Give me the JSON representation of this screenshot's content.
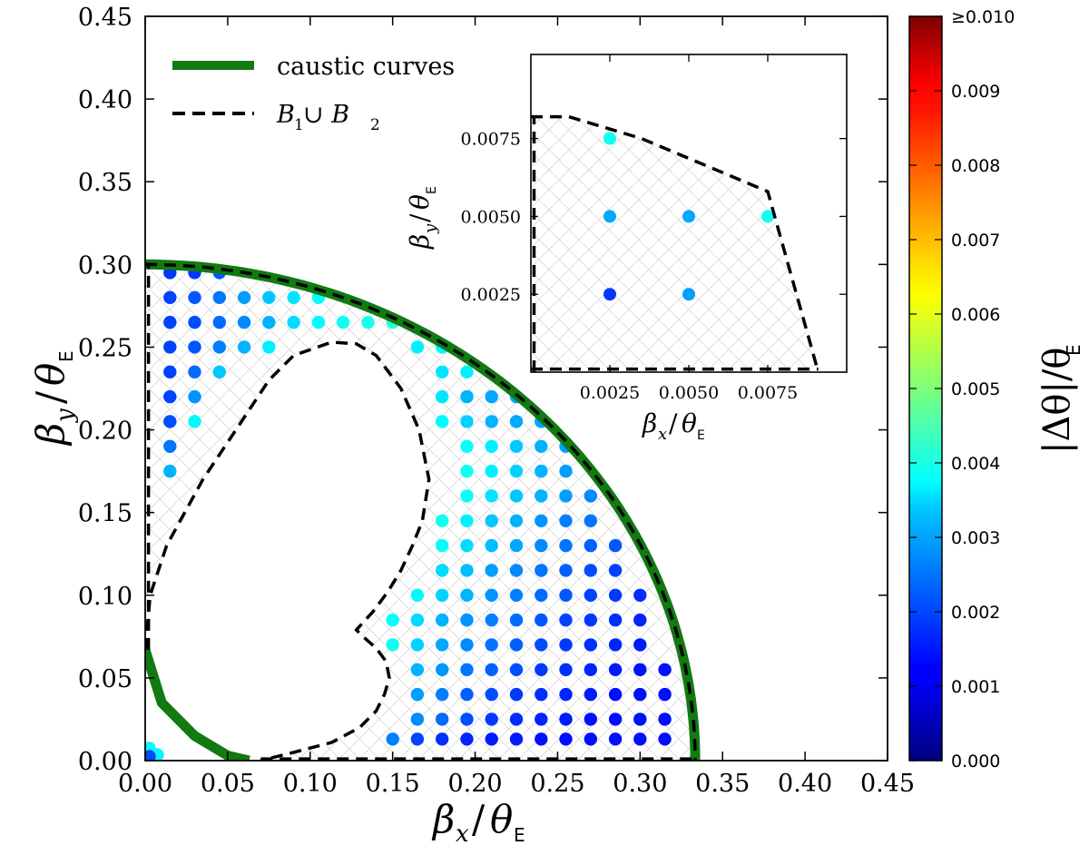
{
  "chart_data": [
    {
      "type": "scatter",
      "name": "main-plot",
      "xlabel_base": "β",
      "xlabel_sub": "x",
      "xlabel_den": "θ",
      "xlabel_den_sub": "E",
      "ylabel_base": "β",
      "ylabel_sub": "y",
      "ylabel_den": "θ",
      "ylabel_den_sub": "E",
      "xlim": [
        0,
        0.45
      ],
      "ylim": [
        0,
        0.45
      ],
      "xticks": [
        "0.00",
        "0.05",
        "0.10",
        "0.15",
        "0.20",
        "0.25",
        "0.30",
        "0.35",
        "0.40",
        "0.45"
      ],
      "yticks": [
        "0.00",
        "0.05",
        "0.10",
        "0.15",
        "0.20",
        "0.25",
        "0.30",
        "0.35",
        "0.40",
        "0.45"
      ],
      "legend": {
        "position": "top-left",
        "entries": [
          {
            "label": "caustic curves",
            "style": "solid",
            "color": "#117a11"
          },
          {
            "label": "B",
            "label_sub1": "1",
            "label_mid": " ∪ B",
            "label_sub2": "2",
            "style": "dashed",
            "color": "#000000"
          }
        ]
      },
      "caustic_outer_radius": 0.3,
      "caustic_outer_x_intercept": 0.3334,
      "caustic_inner": [
        [
          0.0,
          0.067
        ],
        [
          0.01,
          0.035
        ],
        [
          0.03,
          0.015
        ],
        [
          0.05,
          0.003
        ],
        [
          0.063,
          0.0
        ]
      ],
      "boundary_outer_radius": 0.3,
      "boundary_outer_x_intercept": 0.3334,
      "boundary_inner": [
        [
          0.0,
          0.067
        ],
        [
          0.003,
          0.1
        ],
        [
          0.013,
          0.13
        ],
        [
          0.035,
          0.17
        ],
        [
          0.055,
          0.2
        ],
        [
          0.075,
          0.23
        ],
        [
          0.09,
          0.245
        ],
        [
          0.113,
          0.253
        ],
        [
          0.128,
          0.252
        ],
        [
          0.14,
          0.245
        ],
        [
          0.155,
          0.225
        ],
        [
          0.166,
          0.2
        ],
        [
          0.172,
          0.17
        ],
        [
          0.168,
          0.145
        ],
        [
          0.162,
          0.13
        ],
        [
          0.155,
          0.115
        ],
        [
          0.147,
          0.102
        ],
        [
          0.138,
          0.09
        ],
        [
          0.128,
          0.079
        ],
        [
          0.132,
          0.075
        ],
        [
          0.14,
          0.068
        ],
        [
          0.146,
          0.06
        ],
        [
          0.148,
          0.05
        ],
        [
          0.145,
          0.04
        ],
        [
          0.14,
          0.03
        ],
        [
          0.13,
          0.02
        ],
        [
          0.113,
          0.011
        ],
        [
          0.09,
          0.005
        ],
        [
          0.07,
          0.0
        ]
      ],
      "colorbar": {
        "label": "|Δθ|/θ",
        "label_sub": "E",
        "min": 0.0,
        "max": 0.01,
        "ticks": [
          "0.000",
          "0.001",
          "0.002",
          "0.003",
          "0.004",
          "0.005",
          "0.006",
          "0.007",
          "0.008",
          "0.009",
          "≥0.010"
        ]
      },
      "points": [
        [
          0.015,
          0.295,
          0.0018
        ],
        [
          0.03,
          0.295,
          0.0018
        ],
        [
          0.045,
          0.295,
          0.0021
        ],
        [
          0.015,
          0.28,
          0.0019
        ],
        [
          0.03,
          0.28,
          0.0021
        ],
        [
          0.045,
          0.28,
          0.0024
        ],
        [
          0.06,
          0.28,
          0.0028
        ],
        [
          0.075,
          0.28,
          0.0032
        ],
        [
          0.09,
          0.28,
          0.0035
        ],
        [
          0.105,
          0.28,
          0.0038
        ],
        [
          0.015,
          0.265,
          0.0019
        ],
        [
          0.03,
          0.265,
          0.002
        ],
        [
          0.045,
          0.265,
          0.0023
        ],
        [
          0.06,
          0.265,
          0.0026
        ],
        [
          0.075,
          0.265,
          0.003
        ],
        [
          0.09,
          0.265,
          0.0034
        ],
        [
          0.105,
          0.265,
          0.0037
        ],
        [
          0.12,
          0.265,
          0.0039
        ],
        [
          0.135,
          0.265,
          0.004
        ],
        [
          0.15,
          0.265,
          0.0041
        ],
        [
          0.015,
          0.25,
          0.0019
        ],
        [
          0.03,
          0.25,
          0.0021
        ],
        [
          0.045,
          0.25,
          0.0025
        ],
        [
          0.06,
          0.25,
          0.003
        ],
        [
          0.075,
          0.25,
          0.0036
        ],
        [
          0.165,
          0.25,
          0.0036
        ],
        [
          0.18,
          0.25,
          0.0037
        ],
        [
          0.015,
          0.235,
          0.0019
        ],
        [
          0.03,
          0.235,
          0.0023
        ],
        [
          0.045,
          0.235,
          0.0032
        ],
        [
          0.18,
          0.235,
          0.0035
        ],
        [
          0.195,
          0.235,
          0.0036
        ],
        [
          0.015,
          0.22,
          0.0019
        ],
        [
          0.03,
          0.22,
          0.0027
        ],
        [
          0.18,
          0.22,
          0.0035
        ],
        [
          0.195,
          0.22,
          0.003
        ],
        [
          0.21,
          0.22,
          0.0029
        ],
        [
          0.225,
          0.22,
          0.0029
        ],
        [
          0.015,
          0.205,
          0.002
        ],
        [
          0.03,
          0.205,
          0.0037
        ],
        [
          0.18,
          0.205,
          0.0037
        ],
        [
          0.195,
          0.205,
          0.0033
        ],
        [
          0.21,
          0.205,
          0.003
        ],
        [
          0.225,
          0.205,
          0.0029
        ],
        [
          0.24,
          0.205,
          0.0029
        ],
        [
          0.015,
          0.19,
          0.0024
        ],
        [
          0.195,
          0.19,
          0.0038
        ],
        [
          0.21,
          0.19,
          0.0036
        ],
        [
          0.225,
          0.19,
          0.0032
        ],
        [
          0.24,
          0.19,
          0.003
        ],
        [
          0.255,
          0.19,
          0.0028
        ],
        [
          0.015,
          0.175,
          0.003
        ],
        [
          0.195,
          0.175,
          0.0039
        ],
        [
          0.21,
          0.175,
          0.0036
        ],
        [
          0.225,
          0.175,
          0.0033
        ],
        [
          0.24,
          0.175,
          0.003
        ],
        [
          0.255,
          0.175,
          0.0028
        ],
        [
          0.195,
          0.16,
          0.0038
        ],
        [
          0.21,
          0.16,
          0.0035
        ],
        [
          0.225,
          0.16,
          0.0032
        ],
        [
          0.24,
          0.16,
          0.003
        ],
        [
          0.255,
          0.16,
          0.0028
        ],
        [
          0.27,
          0.16,
          0.0026
        ],
        [
          0.18,
          0.145,
          0.0039
        ],
        [
          0.195,
          0.145,
          0.0036
        ],
        [
          0.21,
          0.145,
          0.0032
        ],
        [
          0.225,
          0.145,
          0.003
        ],
        [
          0.24,
          0.145,
          0.0027
        ],
        [
          0.255,
          0.145,
          0.0025
        ],
        [
          0.27,
          0.145,
          0.0024
        ],
        [
          0.18,
          0.13,
          0.0038
        ],
        [
          0.195,
          0.13,
          0.0034
        ],
        [
          0.21,
          0.13,
          0.0031
        ],
        [
          0.225,
          0.13,
          0.0029
        ],
        [
          0.24,
          0.13,
          0.0026
        ],
        [
          0.255,
          0.13,
          0.0024
        ],
        [
          0.27,
          0.13,
          0.0022
        ],
        [
          0.285,
          0.13,
          0.0021
        ],
        [
          0.18,
          0.115,
          0.0034
        ],
        [
          0.195,
          0.115,
          0.0031
        ],
        [
          0.21,
          0.115,
          0.0028
        ],
        [
          0.225,
          0.115,
          0.0026
        ],
        [
          0.24,
          0.115,
          0.0024
        ],
        [
          0.255,
          0.115,
          0.0022
        ],
        [
          0.27,
          0.115,
          0.002
        ],
        [
          0.285,
          0.115,
          0.0019
        ],
        [
          0.165,
          0.1,
          0.0037
        ],
        [
          0.18,
          0.1,
          0.0033
        ],
        [
          0.195,
          0.1,
          0.003
        ],
        [
          0.21,
          0.1,
          0.0027
        ],
        [
          0.225,
          0.1,
          0.0025
        ],
        [
          0.24,
          0.1,
          0.0023
        ],
        [
          0.255,
          0.1,
          0.0021
        ],
        [
          0.27,
          0.1,
          0.0019
        ],
        [
          0.285,
          0.1,
          0.0018
        ],
        [
          0.3,
          0.1,
          0.0017
        ],
        [
          0.15,
          0.085,
          0.0038
        ],
        [
          0.165,
          0.085,
          0.0034
        ],
        [
          0.18,
          0.085,
          0.003
        ],
        [
          0.195,
          0.085,
          0.0027
        ],
        [
          0.21,
          0.085,
          0.0025
        ],
        [
          0.225,
          0.085,
          0.0023
        ],
        [
          0.24,
          0.085,
          0.0021
        ],
        [
          0.255,
          0.085,
          0.0019
        ],
        [
          0.27,
          0.085,
          0.0018
        ],
        [
          0.285,
          0.085,
          0.0017
        ],
        [
          0.3,
          0.085,
          0.0016
        ],
        [
          0.15,
          0.07,
          0.0039
        ],
        [
          0.165,
          0.07,
          0.0033
        ],
        [
          0.18,
          0.07,
          0.0029
        ],
        [
          0.195,
          0.07,
          0.0026
        ],
        [
          0.21,
          0.07,
          0.0024
        ],
        [
          0.225,
          0.07,
          0.0022
        ],
        [
          0.24,
          0.07,
          0.002
        ],
        [
          0.255,
          0.07,
          0.0018
        ],
        [
          0.27,
          0.07,
          0.0017
        ],
        [
          0.285,
          0.07,
          0.0016
        ],
        [
          0.3,
          0.07,
          0.0015
        ],
        [
          0.165,
          0.055,
          0.003
        ],
        [
          0.18,
          0.055,
          0.0027
        ],
        [
          0.195,
          0.055,
          0.0024
        ],
        [
          0.21,
          0.055,
          0.0022
        ],
        [
          0.225,
          0.055,
          0.002
        ],
        [
          0.24,
          0.055,
          0.0018
        ],
        [
          0.255,
          0.055,
          0.0017
        ],
        [
          0.27,
          0.055,
          0.0016
        ],
        [
          0.285,
          0.055,
          0.0015
        ],
        [
          0.3,
          0.055,
          0.0014
        ],
        [
          0.315,
          0.055,
          0.0014
        ],
        [
          0.165,
          0.04,
          0.0028
        ],
        [
          0.18,
          0.04,
          0.0025
        ],
        [
          0.195,
          0.04,
          0.0022
        ],
        [
          0.21,
          0.04,
          0.002
        ],
        [
          0.225,
          0.04,
          0.0018
        ],
        [
          0.24,
          0.04,
          0.0017
        ],
        [
          0.255,
          0.04,
          0.0016
        ],
        [
          0.27,
          0.04,
          0.0015
        ],
        [
          0.285,
          0.04,
          0.0014
        ],
        [
          0.3,
          0.04,
          0.0014
        ],
        [
          0.315,
          0.04,
          0.0014
        ],
        [
          0.165,
          0.025,
          0.0026
        ],
        [
          0.18,
          0.025,
          0.0023
        ],
        [
          0.195,
          0.025,
          0.002
        ],
        [
          0.21,
          0.025,
          0.0018
        ],
        [
          0.225,
          0.025,
          0.0017
        ],
        [
          0.24,
          0.025,
          0.0016
        ],
        [
          0.255,
          0.025,
          0.0015
        ],
        [
          0.27,
          0.025,
          0.0014
        ],
        [
          0.285,
          0.025,
          0.0014
        ],
        [
          0.3,
          0.025,
          0.0014
        ],
        [
          0.315,
          0.025,
          0.0014
        ],
        [
          0.15,
          0.013,
          0.0025
        ],
        [
          0.165,
          0.013,
          0.0019
        ],
        [
          0.18,
          0.013,
          0.0017
        ],
        [
          0.195,
          0.013,
          0.0016
        ],
        [
          0.21,
          0.013,
          0.0015
        ],
        [
          0.225,
          0.013,
          0.0015
        ],
        [
          0.24,
          0.013,
          0.0014
        ],
        [
          0.255,
          0.013,
          0.0014
        ],
        [
          0.27,
          0.013,
          0.0014
        ],
        [
          0.285,
          0.013,
          0.0014
        ],
        [
          0.3,
          0.013,
          0.0014
        ],
        [
          0.315,
          0.013,
          0.0014
        ],
        [
          0.0025,
          0.0075,
          0.0038
        ],
        [
          0.0075,
          0.0035,
          0.0037
        ],
        [
          0.0025,
          0.0025,
          0.002
        ]
      ]
    },
    {
      "type": "scatter",
      "name": "inset-plot",
      "xlabel_base": "β",
      "xlabel_sub": "x",
      "xlabel_den": "θ",
      "xlabel_den_sub": "E",
      "ylabel_base": "β",
      "ylabel_sub": "y",
      "ylabel_den": "θ",
      "ylabel_den_sub": "E",
      "xlim": [
        0,
        0.01
      ],
      "ylim": [
        0,
        0.0102
      ],
      "xticks": [
        {
          "value": 0.0025,
          "label": "0.0025"
        },
        {
          "value": 0.005,
          "label": "0.0050"
        },
        {
          "value": 0.0075,
          "label": "0.0075"
        }
      ],
      "yticks": [
        {
          "value": 0.0025,
          "label": "0.0025"
        },
        {
          "value": 0.005,
          "label": "0.0050"
        },
        {
          "value": 0.0075,
          "label": "0.0075"
        }
      ],
      "boundary": [
        [
          0.0,
          0.0082
        ],
        [
          0.0012,
          0.0082
        ],
        [
          0.0035,
          0.0075
        ],
        [
          0.0075,
          0.0058
        ],
        [
          0.0091,
          0.0
        ]
      ],
      "points": [
        [
          0.0025,
          0.0075,
          0.0039
        ],
        [
          0.0025,
          0.005,
          0.0029
        ],
        [
          0.005,
          0.005,
          0.0029
        ],
        [
          0.0075,
          0.005,
          0.0039
        ],
        [
          0.0025,
          0.0025,
          0.0018
        ],
        [
          0.005,
          0.0025,
          0.0028
        ]
      ]
    }
  ]
}
